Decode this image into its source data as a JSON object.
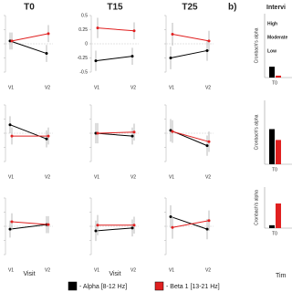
{
  "chart_data": [
    {
      "type": "line",
      "titles": [
        "T0",
        "T15",
        "T25"
      ],
      "x_label": "Visit",
      "categories": [
        "V1",
        "V2"
      ],
      "ylim": [
        -0.5,
        0.5
      ],
      "yticks": [
        0.5,
        0.25,
        0,
        -0.25,
        -0.5
      ],
      "series": [
        {
          "name": "- Alpha [8-12 Hz]",
          "color": "#000000",
          "values": [
            [
              0.05,
              -0.17
            ],
            [
              -0.3,
              -0.22
            ],
            [
              -0.25,
              -0.12
            ],
            [
              0.15,
              -0.1
            ],
            [
              0.0,
              -0.05
            ],
            [
              0.05,
              -0.22
            ],
            [
              -0.05,
              0.03
            ],
            [
              -0.08,
              -0.03
            ],
            [
              0.17,
              -0.05
            ]
          ],
          "errors": [
            [
              0.15,
              0.15
            ],
            [
              0.18,
              0.15
            ],
            [
              0.2,
              0.18
            ],
            [
              0.15,
              0.15
            ],
            [
              0.18,
              0.15
            ],
            [
              0.2,
              0.18
            ],
            [
              0.15,
              0.15
            ],
            [
              0.18,
              0.15
            ],
            [
              0.2,
              0.18
            ]
          ]
        },
        {
          "name": "- Beta 1 [13-21 Hz]",
          "color": "#e02020",
          "values": [
            [
              0.05,
              0.18
            ],
            [
              0.28,
              0.23
            ],
            [
              0.17,
              0.05
            ],
            [
              -0.05,
              -0.05
            ],
            [
              0.0,
              0.02
            ],
            [
              0.03,
              -0.15
            ],
            [
              0.08,
              0.03
            ],
            [
              0.02,
              0.02
            ],
            [
              -0.02,
              0.1
            ]
          ],
          "errors": [
            [
              0.15,
              0.15
            ],
            [
              0.18,
              0.15
            ],
            [
              0.2,
              0.18
            ],
            [
              0.15,
              0.15
            ],
            [
              0.18,
              0.15
            ],
            [
              0.2,
              0.18
            ],
            [
              0.15,
              0.15
            ],
            [
              0.18,
              0.15
            ],
            [
              0.2,
              0.18
            ]
          ]
        }
      ]
    },
    {
      "type": "bar",
      "panel_label": "b)",
      "title": "Intervi",
      "annotations": [
        "High",
        "Moderate",
        "Low"
      ],
      "y_label": "Cronbach's alpha",
      "categories": [
        "T0"
      ],
      "ylim": [
        0,
        1
      ],
      "series": [
        {
          "color": "#000000",
          "values": [
            0.17
          ]
        },
        {
          "color": "#e02020",
          "values": [
            0.03
          ]
        }
      ]
    },
    {
      "type": "bar",
      "y_label": "Cronbach's alpha",
      "categories": [
        "T0"
      ],
      "ylim": [
        0,
        1
      ],
      "series": [
        {
          "color": "#000000",
          "values": [
            0.55
          ]
        },
        {
          "color": "#e02020",
          "values": [
            0.38
          ]
        }
      ]
    },
    {
      "type": "bar",
      "y_label": "Cronbach's alpha",
      "categories": [
        "T0"
      ],
      "ylim": [
        0,
        1
      ],
      "x_label": "Tim",
      "series": [
        {
          "color": "#000000",
          "values": [
            0.07
          ]
        },
        {
          "color": "#e02020",
          "values": [
            0.6
          ]
        }
      ]
    }
  ]
}
